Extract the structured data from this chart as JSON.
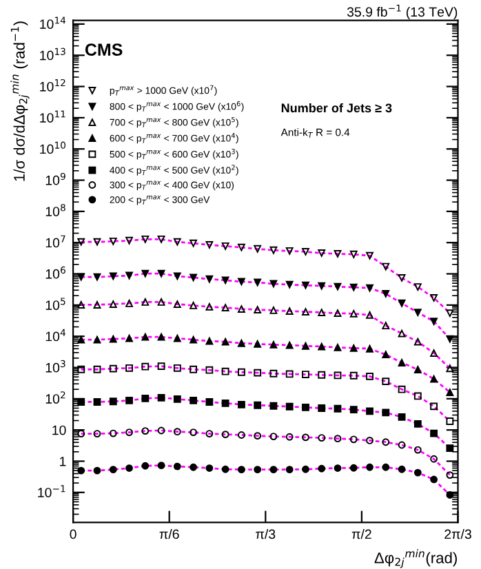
{
  "chart_data": {
    "type": "line",
    "title": "35.9 fb$^{−1}$ (13 TeV)",
    "xlabel": "Δφ$_{2j}$$^{min}$(rad)",
    "ylabel": "1/σ dσ/dΔφ$_{2j}$$^{min}$ (rad$^{−1}$)",
    "annotations": [
      "CMS",
      "Number of Jets ≥ 3",
      "Anti-k$_{T}$ R = 0.4"
    ],
    "x": [
      0.0436,
      0.1309,
      0.2182,
      0.3054,
      0.3927,
      0.48,
      0.5672,
      0.6545,
      0.7418,
      0.829,
      0.9163,
      1.0036,
      1.0908,
      1.1781,
      1.2654,
      1.3526,
      1.4399,
      1.5272,
      1.6144,
      1.7017,
      1.789,
      1.8762,
      1.9635,
      2.0508
    ],
    "xlim": [
      0,
      2.0944
    ],
    "xticks": [
      0,
      {
        "value": 0.5236,
        "label": "π/6"
      },
      {
        "value": 1.0472,
        "label": "π/3"
      },
      {
        "value": 1.5708,
        "label": "π/2"
      },
      {
        "value": 2.0944,
        "label": "2π/3"
      }
    ],
    "ylim": [
      0.011,
      130000000000000.0
    ],
    "yticks": [
      {
        "value": 0.1,
        "label": "10$^{−1}$"
      },
      1,
      10,
      {
        "value": 100,
        "label": "10$^{2}$"
      },
      {
        "value": 1000,
        "label": "10$^{3}$"
      },
      {
        "value": 10000.0,
        "label": "10$^{4}$"
      },
      {
        "value": 100000.0,
        "label": "10$^{5}$"
      },
      {
        "value": 1000000.0,
        "label": "10$^{6}$"
      },
      {
        "value": 10000000.0,
        "label": "10$^{7}$"
      },
      {
        "value": 100000000.0,
        "label": "10$^{8}$"
      },
      {
        "value": 1000000000.0,
        "label": "10$^{9}$"
      },
      {
        "value": 10000000000.0,
        "label": "10$^{10}$"
      },
      {
        "value": 100000000000.0,
        "label": "10$^{11}$"
      },
      {
        "value": 1000000000000.0,
        "label": "10$^{12}$"
      },
      {
        "value": 10000000000000.0,
        "label": "10$^{13}$"
      },
      {
        "value": 100000000000000.0,
        "label": "10$^{14}$"
      }
    ],
    "log": "y",
    "grid": false,
    "legend": "top left",
    "series": [
      {
        "type": "scatter",
        "name": "p$_{T}$$^{max}$ > 1000 GeV (x10$^{7}$)",
        "color": "#000000",
        "marker": "triangle_down_open",
        "values": [
          10500000.0,
          10500000.0,
          11000000.0,
          11600000.0,
          12800000.0,
          12800000.0,
          10500000.0,
          9500000.0,
          8500000.0,
          7700000.0,
          7000000.0,
          6300000.0,
          5700000.0,
          5400000.0,
          5100000.0,
          4600000.0,
          4400000.0,
          4200000.0,
          3800000.0,
          1700000.0,
          740000.0,
          380000.0,
          170000.0,
          55000.0
        ]
      },
      {
        "type": "scatter",
        "name": "800 < p$_{T}$$^{max}$ < 1000 GeV (x10$^{6}$)",
        "color": "#000000",
        "marker": "triangle_down",
        "values": [
          790000.0,
          790000.0,
          840000.0,
          880000.0,
          1020000.0,
          1020000.0,
          840000.0,
          760000.0,
          680000.0,
          620000.0,
          560000.0,
          530000.0,
          480000.0,
          450000.0,
          430000.0,
          410000.0,
          390000.0,
          370000.0,
          350000.0,
          230000.0,
          114000.0,
          58000.0,
          30000.0,
          8200.0
        ]
      },
      {
        "type": "scatter",
        "name": "700 < p$_{T}$$^{max}$ < 800 GeV (x10$^{5}$)",
        "color": "#000000",
        "marker": "triangle_open",
        "values": [
          102000.0,
          102000.0,
          107000.0,
          113000.0,
          125000.0,
          125000.0,
          107000.0,
          97000.0,
          88000.0,
          83000.0,
          75000.0,
          71000.0,
          68000.0,
          64000.0,
          61000.0,
          58000.0,
          55000.0,
          53000.0,
          48000.0,
          22000.0,
          12300.0,
          6700.0,
          2900.0,
          940
        ]
      },
      {
        "type": "scatter",
        "name": "600 < p$_{T}$$^{max}$ < 700 GeV (x10$^{4}$)",
        "color": "#000000",
        "marker": "triangle",
        "values": [
          7800.0,
          7800.0,
          8200.0,
          8600.0,
          9500.0,
          9500.0,
          8600.0,
          7800.0,
          7000.0,
          6700.0,
          6000.0,
          5700.0,
          5400.0,
          5200.0,
          4900.0,
          4700.0,
          4400.0,
          4200.0,
          4000.0,
          2600.0,
          1430.0,
          860,
          430,
          160
        ]
      },
      {
        "type": "scatter",
        "name": "500 < p$_{T}$$^{max}$ < 600 GeV (x10$^{3}$)",
        "color": "#000000",
        "marker": "square_open",
        "values": [
          870,
          870,
          920,
          960,
          1070,
          1100,
          960,
          870,
          830,
          750,
          710,
          680,
          640,
          620,
          600,
          580,
          560,
          550,
          520,
          360,
          200,
          122,
          57,
          19
        ]
      },
      {
        "type": "scatter",
        "name": "400 < p$_{T}$$^{max}$ < 500 GeV (x10$^{2}$)",
        "color": "#000000",
        "marker": "square",
        "values": [
          79,
          79,
          82,
          88,
          102,
          108,
          97,
          88,
          79,
          72,
          65,
          62,
          59,
          56,
          53,
          50,
          48,
          45,
          40,
          36,
          26,
          15.6,
          7.8,
          2.6
        ]
      },
      {
        "type": "scatter",
        "name": "300 < p$_{T}$$^{max}$ < 400 GeV (x10)",
        "color": "#000000",
        "marker": "circle_open",
        "values": [
          7.6,
          7.6,
          7.8,
          8.4,
          9.3,
          9.6,
          8.8,
          8.4,
          7.6,
          7.2,
          6.9,
          6.5,
          6.2,
          6.0,
          5.8,
          5.6,
          5.3,
          5.0,
          4.6,
          4.1,
          3.3,
          2.3,
          1.18,
          0.36
        ]
      },
      {
        "type": "scatter",
        "name": "200 < p$_{T}$$^{max}$ < 300 GeV",
        "color": "#000000",
        "marker": "circle",
        "values": [
          0.5,
          0.5,
          0.54,
          0.6,
          0.71,
          0.73,
          0.68,
          0.64,
          0.6,
          0.55,
          0.54,
          0.54,
          0.54,
          0.54,
          0.55,
          0.58,
          0.6,
          0.61,
          0.64,
          0.64,
          0.55,
          0.43,
          0.26,
          0.083
        ]
      },
      {
        "type": "line",
        "color": "#ff00ff",
        "line_style": "dashed",
        "marker": "none",
        "values": [
          10500000.0,
          10500000.0,
          11000000.0,
          11600000.0,
          12800000.0,
          12800000.0,
          10500000.0,
          9500000.0,
          8500000.0,
          7700000.0,
          7000000.0,
          6300000.0,
          5700000.0,
          5400000.0,
          5100000.0,
          4600000.0,
          4400000.0,
          4200000.0,
          3800000.0,
          1700000.0,
          740000.0,
          380000.0,
          170000.0,
          55000.0
        ]
      },
      {
        "type": "line",
        "color": "#ff00ff",
        "line_style": "dashed",
        "marker": "none",
        "values": [
          790000.0,
          790000.0,
          840000.0,
          880000.0,
          1020000.0,
          1020000.0,
          840000.0,
          760000.0,
          680000.0,
          620000.0,
          560000.0,
          530000.0,
          480000.0,
          450000.0,
          430000.0,
          410000.0,
          390000.0,
          370000.0,
          350000.0,
          230000.0,
          114000.0,
          58000.0,
          30000.0,
          8200.0
        ]
      },
      {
        "type": "line",
        "color": "#ff00ff",
        "line_style": "dashed",
        "marker": "none",
        "values": [
          102000.0,
          102000.0,
          107000.0,
          113000.0,
          125000.0,
          125000.0,
          107000.0,
          97000.0,
          88000.0,
          83000.0,
          75000.0,
          71000.0,
          68000.0,
          64000.0,
          61000.0,
          58000.0,
          55000.0,
          53000.0,
          48000.0,
          22000.0,
          12300.0,
          6700.0,
          2900.0,
          940
        ]
      },
      {
        "type": "line",
        "color": "#ff00ff",
        "line_style": "dashed",
        "marker": "none",
        "values": [
          7800.0,
          7800.0,
          8200.0,
          8600.0,
          9500.0,
          9500.0,
          8600.0,
          7800.0,
          7000.0,
          6700.0,
          6000.0,
          5700.0,
          5400.0,
          5200.0,
          4900.0,
          4700.0,
          4400.0,
          4200.0,
          4000.0,
          2600.0,
          1430.0,
          860,
          430,
          160
        ]
      },
      {
        "type": "line",
        "color": "#ff00ff",
        "line_style": "dashed",
        "marker": "none",
        "values": [
          870,
          870,
          920,
          960,
          1070,
          1100,
          960,
          870,
          830,
          750,
          710,
          680,
          640,
          620,
          600,
          580,
          560,
          550,
          520,
          360,
          200,
          122,
          57,
          19
        ]
      },
      {
        "type": "line",
        "color": "#ff00ff",
        "line_style": "dashed",
        "marker": "none",
        "values": [
          79,
          79,
          82,
          88,
          102,
          108,
          97,
          88,
          79,
          72,
          65,
          62,
          59,
          56,
          53,
          50,
          48,
          45,
          40,
          36,
          26,
          15.6,
          7.8,
          2.6
        ]
      },
      {
        "type": "line",
        "color": "#ff00ff",
        "line_style": "dashed",
        "marker": "none",
        "values": [
          7.6,
          7.6,
          7.8,
          8.4,
          9.3,
          9.6,
          8.8,
          8.4,
          7.6,
          7.2,
          6.9,
          6.5,
          6.2,
          6.0,
          5.8,
          5.6,
          5.3,
          5.0,
          4.6,
          4.1,
          3.3,
          2.3,
          1.18,
          0.36
        ]
      },
      {
        "type": "line",
        "color": "#ff00ff",
        "line_style": "dashed",
        "marker": "none",
        "values": [
          0.5,
          0.5,
          0.54,
          0.6,
          0.71,
          0.73,
          0.68,
          0.64,
          0.6,
          0.55,
          0.54,
          0.54,
          0.54,
          0.54,
          0.55,
          0.58,
          0.6,
          0.61,
          0.64,
          0.64,
          0.55,
          0.43,
          0.26,
          0.083
        ]
      }
    ]
  }
}
